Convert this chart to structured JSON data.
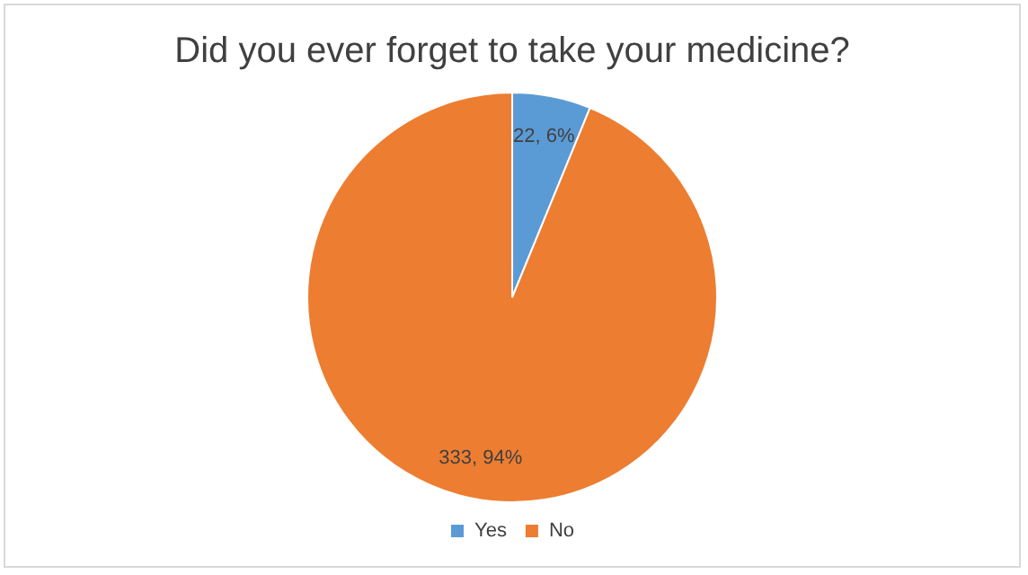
{
  "chart_data": {
    "type": "pie",
    "title": "Did you ever forget to take your medicine?",
    "categories": [
      "Yes",
      "No"
    ],
    "values": [
      22,
      333
    ],
    "colors": [
      "#5b9bd5",
      "#ed7d31"
    ],
    "value_labels": [
      "22, 6%",
      "333, 94%"
    ],
    "legend": "bottom"
  }
}
